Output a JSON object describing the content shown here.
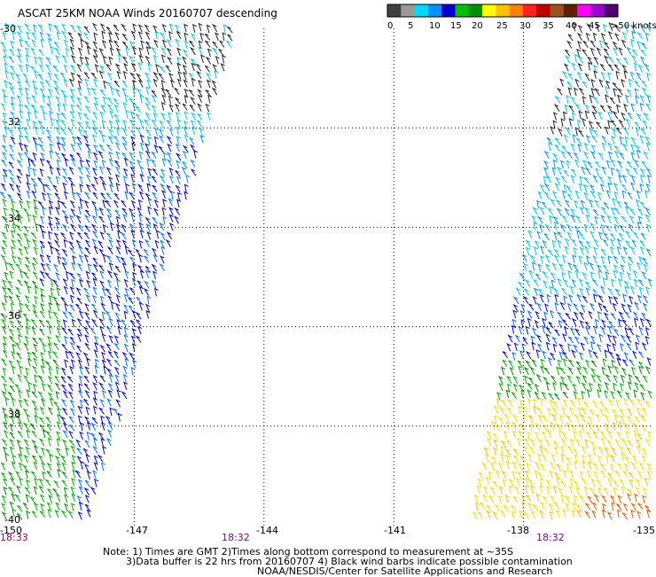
{
  "title": "ASCAT 25KM NOAA Winds 20160707 descending",
  "legend": {
    "colors": [
      "#404040",
      "#9a9a9a",
      "#00d8ff",
      "#0090ff",
      "#0000d0",
      "#00c000",
      "#009000",
      "#ffff00",
      "#ffc000",
      "#ff8000",
      "#ff2020",
      "#c00000",
      "#a05020",
      "#602000",
      "#ff00ff",
      "#a000d0",
      "#500070"
    ],
    "labels": [
      "0",
      "5",
      "10",
      "15",
      "20",
      "25",
      "30",
      "35",
      "40",
      "45",
      ">50 knots"
    ]
  },
  "chart_data": {
    "type": "wind-barb-map",
    "x_axis_ticks": [
      "-150",
      "-147",
      "-144",
      "-141",
      "-138",
      "-135"
    ],
    "y_axis_ticks": [
      "-30",
      "-32",
      "-34",
      "-36",
      "-38",
      "-40"
    ],
    "xlim": [
      -150,
      -135
    ],
    "ylim": [
      -40,
      -30
    ],
    "grid": "dotted",
    "swaths": [
      {
        "time": "18:33",
        "lon_range": [
          -150,
          -146.9
        ]
      },
      {
        "time": "18:32",
        "lon_range": [
          -148.5,
          -143.5
        ]
      },
      {
        "time": "18:32",
        "lon_range": [
          -138.2,
          -135
        ]
      }
    ]
  },
  "footer": {
    "line1": "Note: 1) Times are GMT 2)Times along bottom correspond to measurement at ~35S",
    "line2": "3)Data buffer is 22 hrs from 20160707 4) Black wind barbs indicate possible contamination",
    "line3": "NOAA/NESDIS/Center for Satellite Applications and Research"
  }
}
